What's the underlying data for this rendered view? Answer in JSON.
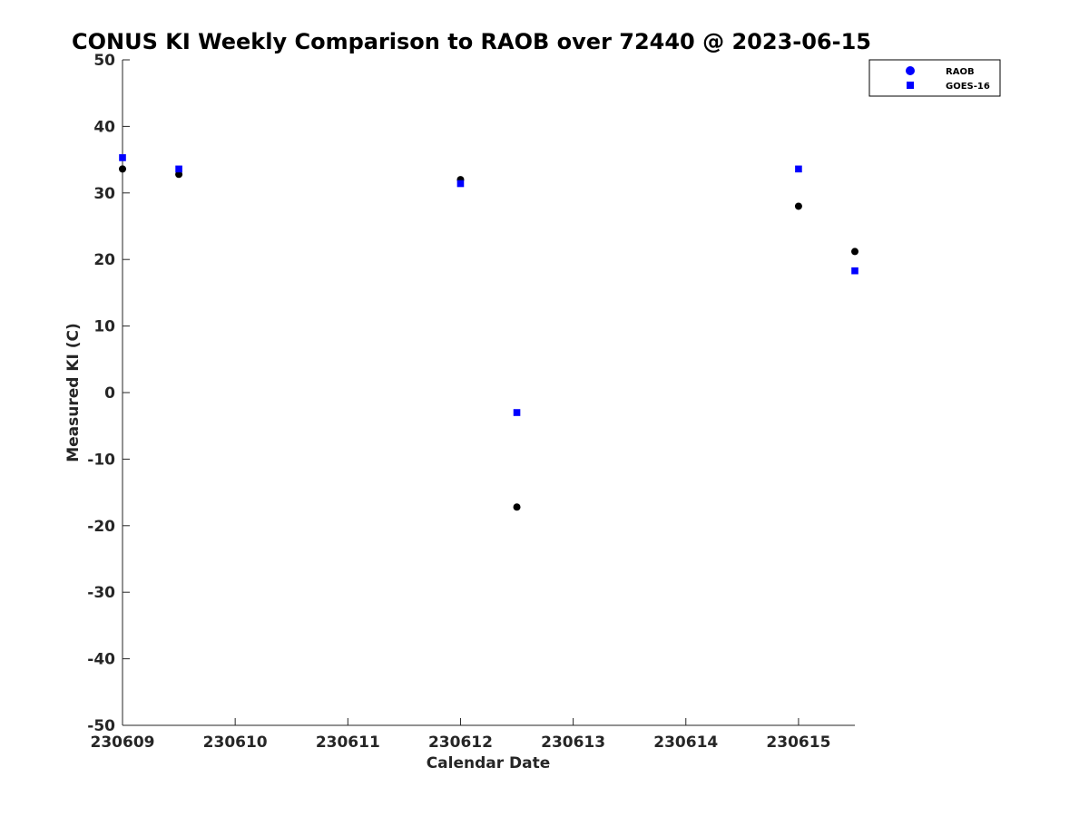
{
  "chart_data": {
    "type": "scatter",
    "title": "CONUS KI Weekly Comparison to RAOB over 72440 @ 2023-06-15",
    "xlabel": "Calendar Date",
    "ylabel": "Measured KI (C)",
    "xlim": [
      "2023-06-09",
      "2023-06-15 12:00"
    ],
    "ylim": [
      -50,
      50
    ],
    "x_ticks": [
      "230609",
      "230610",
      "230611",
      "230612",
      "230613",
      "230614",
      "230615"
    ],
    "y_ticks": [
      50,
      40,
      30,
      20,
      10,
      0,
      -10,
      -20,
      -30,
      -40,
      -50
    ],
    "grid": false,
    "legend_position": "top-right",
    "series": [
      {
        "name": "RAOB",
        "marker": "circle",
        "color": "#000000",
        "legend_color": "#0000ff",
        "x": [
          "2023-06-09 00:00",
          "2023-06-09 12:00",
          "2023-06-12 00:00",
          "2023-06-12 12:00",
          "2023-06-15 00:00",
          "2023-06-15 12:00"
        ],
        "y": [
          33.6,
          32.8,
          32.0,
          -17.2,
          28.0,
          21.2
        ]
      },
      {
        "name": "GOES-16",
        "marker": "square",
        "color": "#0000ff",
        "x": [
          "2023-06-09 00:00",
          "2023-06-09 12:00",
          "2023-06-12 00:00",
          "2023-06-12 12:00",
          "2023-06-15 00:00",
          "2023-06-15 12:00"
        ],
        "y": [
          35.3,
          33.6,
          31.4,
          -3.0,
          33.6,
          18.3
        ]
      }
    ]
  }
}
